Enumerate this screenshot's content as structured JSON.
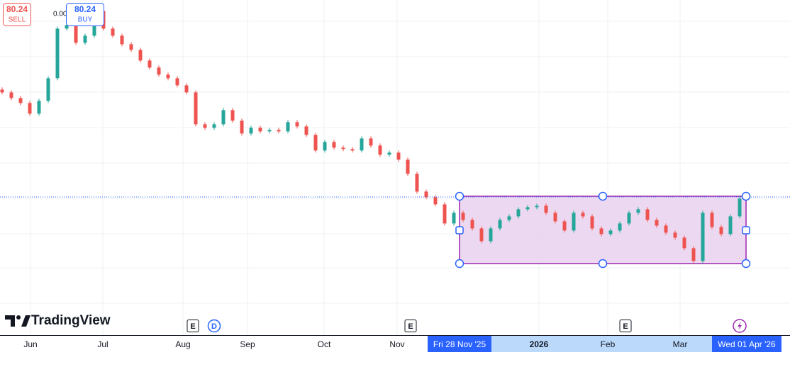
{
  "sell": {
    "price": "80.24",
    "label": "SELL"
  },
  "spread": "0.00",
  "buy": {
    "price": "80.24",
    "label": "BUY"
  },
  "logo": "TradingView",
  "time_axis": {
    "labels": [
      "Jun",
      "Jul",
      "Aug",
      "Sep",
      "Oct",
      "Nov",
      "2026",
      "Feb",
      "Mar"
    ],
    "range_start": "Fri 28 Nov '25",
    "range_end": "Wed 01 Apr '26"
  },
  "badges": [
    "E",
    "D",
    "E",
    "E"
  ],
  "chart_data": {
    "type": "candlestick",
    "open": [
      95.4,
      95.0,
      94.2,
      93.5,
      92.0,
      93.8,
      97.0,
      104.0,
      104.5,
      102.0,
      103.0,
      106.5,
      104.0,
      103.0,
      101.8,
      101.0,
      99.5,
      98.5,
      97.5,
      97.0,
      96.0,
      95.0,
      90.5,
      90.0,
      90.5,
      92.5,
      91.0,
      89.2,
      90.0,
      89.5,
      89.7,
      89.5,
      90.8,
      90.2,
      89.0,
      86.8,
      88.0,
      87.2,
      87.0,
      86.8,
      88.5,
      87.5,
      86.2,
      86.5,
      85.5,
      83.5,
      81.0,
      80.2,
      79.2,
      76.5,
      78.0,
      77.0,
      75.8,
      74.0,
      75.8,
      77.0,
      77.5,
      78.5,
      78.8,
      79.0,
      78.0,
      76.8,
      75.5,
      78.0,
      77.5,
      75.8,
      75.0,
      75.5,
      76.5,
      78.0,
      78.5,
      77.0,
      76.2,
      75.2,
      74.5,
      73.0,
      71.2,
      78.0,
      76.0,
      75.0,
      77.5
    ],
    "close": [
      95.0,
      94.2,
      93.5,
      92.0,
      93.8,
      97.0,
      104.0,
      104.5,
      102.0,
      103.0,
      106.5,
      104.0,
      103.0,
      101.8,
      101.0,
      99.5,
      98.5,
      97.5,
      97.0,
      96.0,
      95.0,
      90.5,
      90.0,
      90.5,
      92.5,
      91.0,
      89.2,
      90.0,
      89.5,
      89.7,
      89.5,
      90.8,
      90.2,
      89.0,
      86.8,
      88.0,
      87.2,
      87.0,
      86.8,
      88.5,
      87.5,
      86.2,
      86.5,
      85.5,
      83.5,
      81.0,
      80.2,
      79.2,
      76.5,
      78.0,
      77.0,
      75.8,
      74.0,
      75.8,
      77.0,
      77.5,
      78.5,
      78.8,
      79.0,
      78.0,
      76.8,
      75.5,
      78.0,
      77.5,
      75.8,
      75.0,
      75.5,
      76.5,
      78.0,
      78.5,
      77.0,
      76.2,
      75.2,
      74.5,
      73.0,
      71.2,
      78.0,
      76.0,
      75.0,
      77.5,
      80.0
    ],
    "up_color": "#26a69a",
    "down_color": "#ef5350"
  }
}
